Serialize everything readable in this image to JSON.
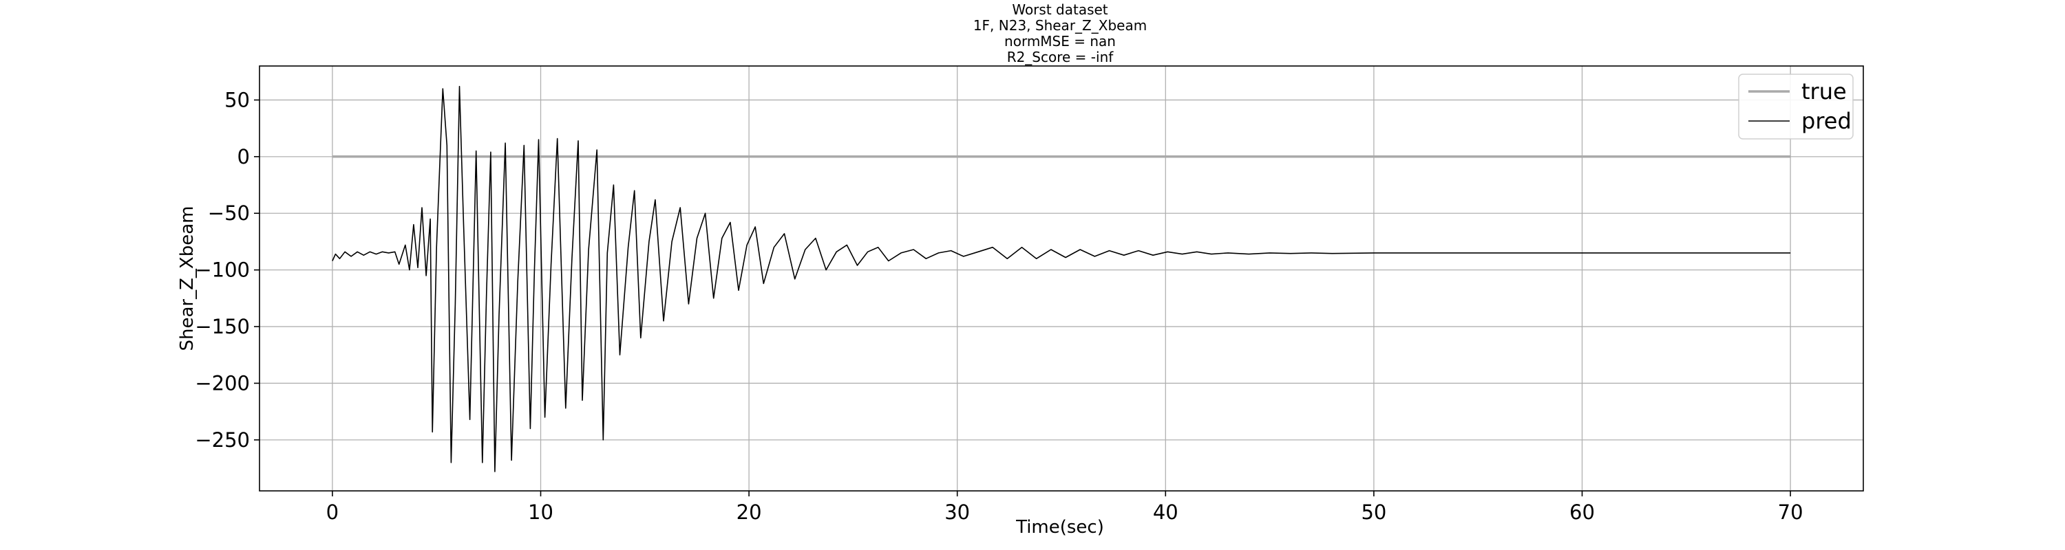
{
  "chart_data": {
    "type": "line",
    "title_lines": [
      "Worst dataset",
      "1F, N23, Shear_Z_Xbeam",
      "normMSE = nan",
      "R2_Score = -inf"
    ],
    "xlabel": "Time(sec)",
    "ylabel": "Shear_Z_Xbeam",
    "xlim": [
      -3.5,
      73.5
    ],
    "ylim": [
      -295,
      80
    ],
    "x_ticks": [
      0,
      10,
      20,
      30,
      40,
      50,
      60,
      70
    ],
    "y_ticks": [
      50,
      0,
      -50,
      -100,
      -150,
      -200,
      -250
    ],
    "x_tick_labels": [
      "0",
      "10",
      "20",
      "30",
      "40",
      "50",
      "60",
      "70"
    ],
    "y_tick_labels": [
      "50",
      "0",
      "−50",
      "−100",
      "−150",
      "−200",
      "−250"
    ],
    "grid": true,
    "legend_position": "top-right",
    "series": [
      {
        "name": "true",
        "color": "#aaaaaa",
        "x": [
          0,
          70
        ],
        "y": [
          0,
          0
        ]
      },
      {
        "name": "pred",
        "color": "#000000",
        "x": [
          0,
          0.15,
          0.35,
          0.6,
          0.9,
          1.2,
          1.5,
          1.8,
          2.1,
          2.4,
          2.7,
          3.0,
          3.2,
          3.5,
          3.7,
          3.9,
          4.1,
          4.3,
          4.5,
          4.7,
          4.8,
          5.0,
          5.15,
          5.3,
          5.5,
          5.7,
          5.9,
          6.1,
          6.3,
          6.6,
          6.9,
          7.2,
          7.4,
          7.6,
          7.8,
          8.0,
          8.3,
          8.6,
          8.9,
          9.2,
          9.5,
          9.7,
          9.9,
          10.2,
          10.5,
          10.8,
          11.2,
          11.5,
          11.8,
          12.0,
          12.3,
          12.7,
          13.0,
          13.2,
          13.5,
          13.8,
          14.2,
          14.5,
          14.8,
          15.2,
          15.5,
          15.9,
          16.3,
          16.7,
          17.1,
          17.5,
          17.9,
          18.3,
          18.7,
          19.1,
          19.5,
          19.9,
          20.3,
          20.7,
          21.2,
          21.7,
          22.2,
          22.7,
          23.2,
          23.7,
          24.2,
          24.7,
          25.2,
          25.7,
          26.2,
          26.7,
          27.3,
          27.9,
          28.5,
          29.1,
          29.7,
          30.3,
          31.0,
          31.7,
          32.4,
          33.1,
          33.8,
          34.5,
          35.2,
          35.9,
          36.6,
          37.3,
          38.0,
          38.7,
          39.4,
          40.1,
          40.8,
          41.5,
          42.2,
          43.0,
          44.0,
          45.0,
          46.0,
          47.0,
          48.0,
          50.0,
          53.0,
          56.0,
          60.0,
          65.0,
          70.0
        ],
        "y": [
          -92,
          -86,
          -90,
          -84,
          -88,
          -84,
          -87,
          -84,
          -86,
          -84,
          -85,
          -84,
          -95,
          -78,
          -100,
          -60,
          -98,
          -45,
          -105,
          -55,
          -243,
          -80,
          -10,
          60,
          10,
          -270,
          -130,
          62,
          -60,
          -232,
          5,
          -270,
          -120,
          4,
          -278,
          -140,
          12,
          -268,
          -110,
          10,
          -240,
          -100,
          15,
          -230,
          -95,
          16,
          -222,
          -90,
          14,
          -215,
          -82,
          6,
          -250,
          -85,
          -25,
          -175,
          -80,
          -30,
          -160,
          -75,
          -38,
          -145,
          -75,
          -45,
          -130,
          -72,
          -50,
          -125,
          -72,
          -58,
          -118,
          -78,
          -62,
          -112,
          -80,
          -68,
          -108,
          -82,
          -72,
          -100,
          -84,
          -78,
          -96,
          -84,
          -80,
          -92,
          -85,
          -82,
          -90,
          -85,
          -83,
          -88,
          -84,
          -80,
          -90,
          -80,
          -90,
          -82,
          -89,
          -82,
          -88,
          -83,
          -87,
          -83,
          -87,
          -84,
          -86,
          -84,
          -86,
          -85,
          -86,
          -85,
          -85.5,
          -85,
          -85.5,
          -85,
          -85,
          -85,
          -85,
          -85,
          -85
        ]
      }
    ]
  }
}
